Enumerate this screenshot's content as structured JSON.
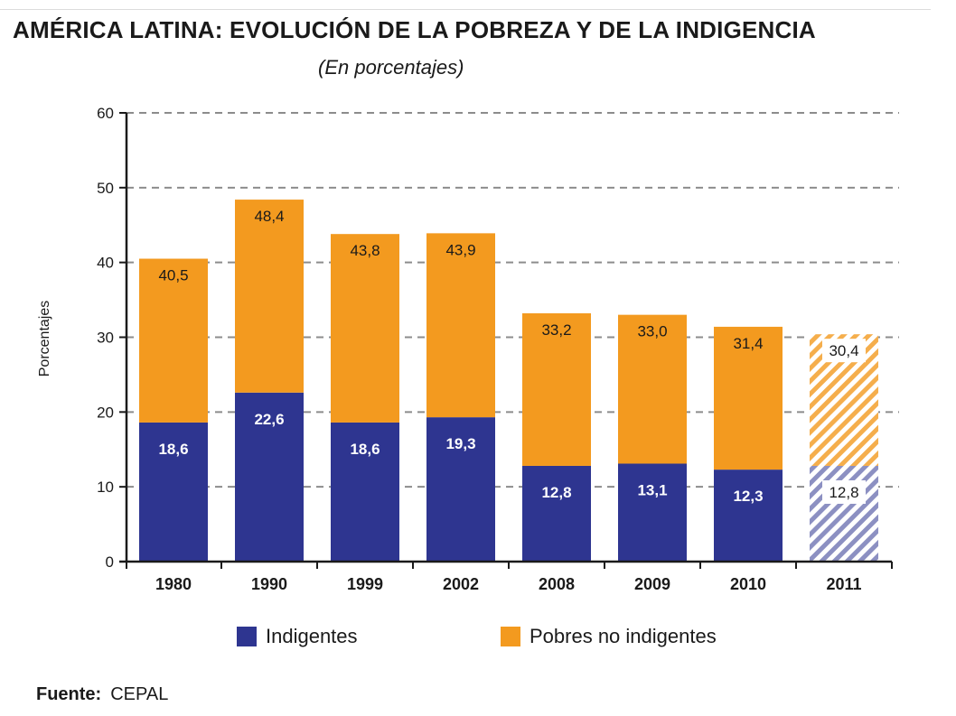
{
  "title": "AMÉRICA LATINA: EVOLUCIÓN DE LA POBREZA Y DE LA INDIGENCIA",
  "subtitle": "(En porcentajes)",
  "source_label": "Fuente:",
  "source_value": "CEPAL",
  "colors": {
    "indigentes": "#2e3590",
    "pobres": "#f39a1f",
    "grid": "#8c8c8c"
  },
  "chart_data": {
    "type": "bar",
    "stacked": true,
    "title": "AMÉRICA LATINA: EVOLUCIÓN DE LA POBREZA Y DE LA INDIGENCIA",
    "subtitle": "(En porcentajes)",
    "xlabel": "",
    "ylabel": "Porcentajes",
    "ylim": [
      0,
      60
    ],
    "yticks": [
      0,
      10,
      20,
      30,
      40,
      50,
      60
    ],
    "grid": true,
    "legend_position": "bottom",
    "categories": [
      "1980",
      "1990",
      "1999",
      "2002",
      "2008",
      "2009",
      "2010",
      "2011"
    ],
    "series": [
      {
        "name": "Indigentes",
        "values": [
          18.6,
          22.6,
          18.6,
          19.3,
          12.8,
          13.1,
          12.3,
          12.8
        ],
        "labels": [
          "18,6",
          "22,6",
          "18,6",
          "19,3",
          "12,8",
          "13,1",
          "12,3",
          "12,8"
        ]
      },
      {
        "name": "Pobres no indigentes",
        "total_values": [
          40.5,
          48.4,
          43.8,
          43.9,
          33.2,
          33.0,
          31.4,
          30.4
        ],
        "labels": [
          "40,5",
          "48,4",
          "43,8",
          "43,9",
          "33,2",
          "33,0",
          "31,4",
          "30,4"
        ]
      }
    ],
    "projected_categories": [
      "2011"
    ]
  }
}
